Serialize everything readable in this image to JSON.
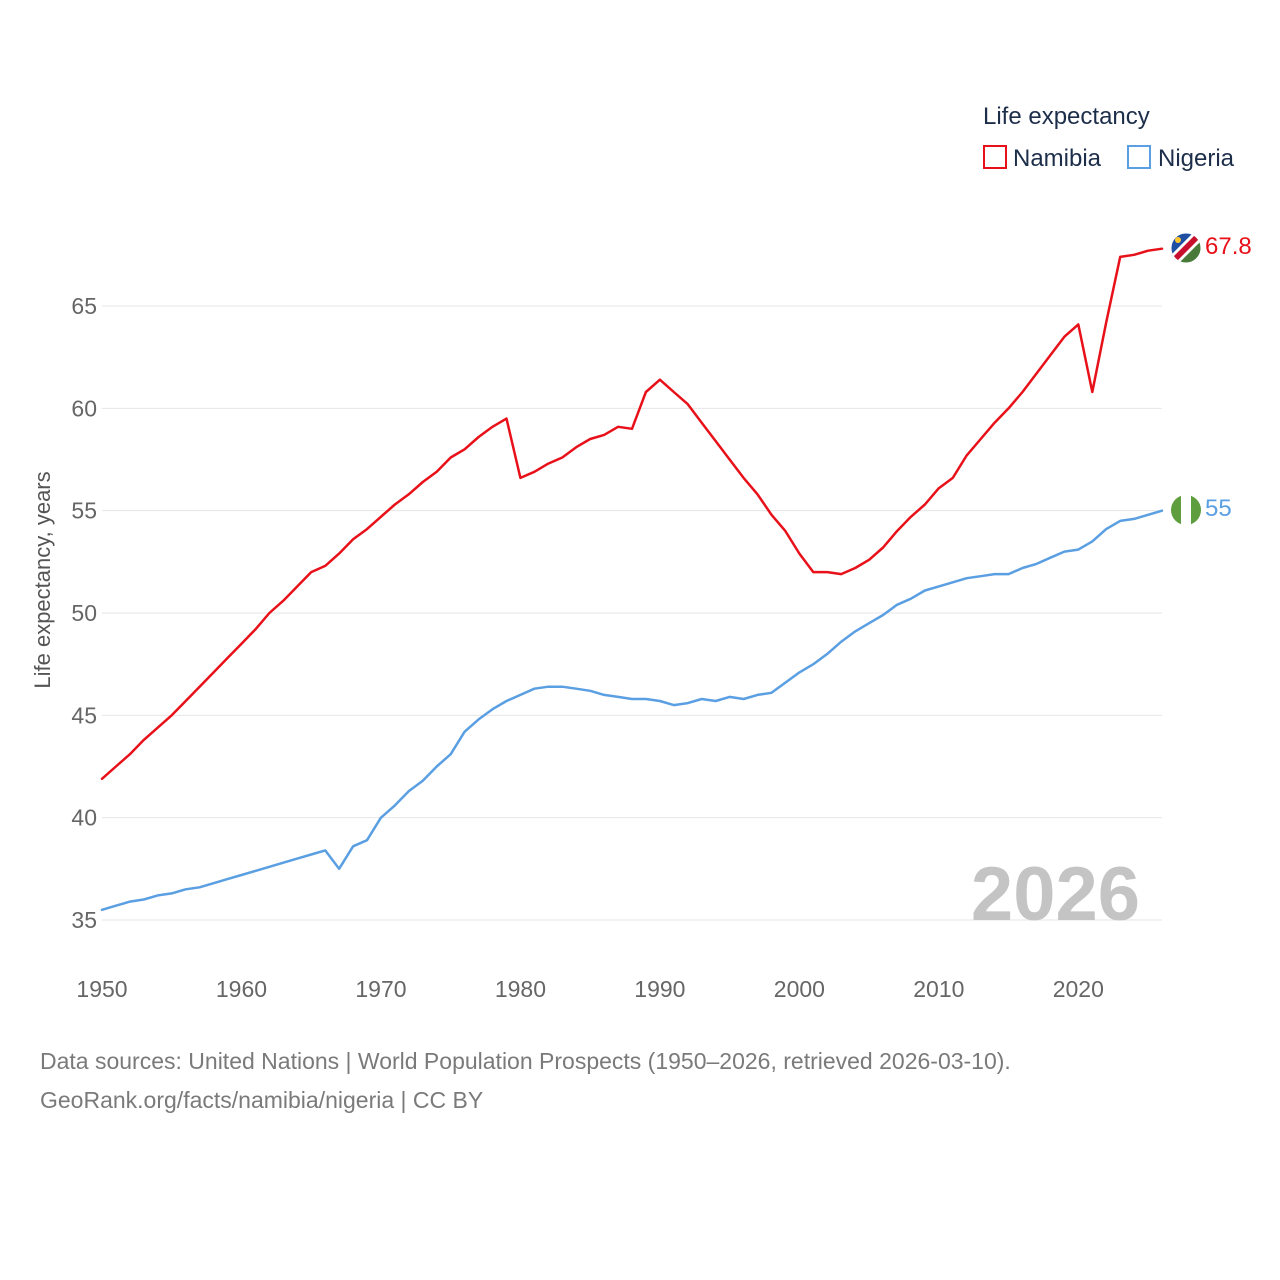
{
  "chart_data": {
    "type": "line",
    "ylabel": "Life expectancy, years",
    "xlabel": "",
    "x_ticks": [
      "1950",
      "1960",
      "1970",
      "1980",
      "1990",
      "2000",
      "2010",
      "2020"
    ],
    "y_ticks": [
      "35",
      "40",
      "45",
      "50",
      "55",
      "60",
      "65"
    ],
    "xlim": [
      1950,
      2026
    ],
    "ylim": [
      33,
      69
    ],
    "year_label": "2026",
    "legend": {
      "title": "Life expectancy",
      "position": "top-right"
    },
    "x": [
      1950,
      1951,
      1952,
      1953,
      1954,
      1955,
      1956,
      1957,
      1958,
      1959,
      1960,
      1961,
      1962,
      1963,
      1964,
      1965,
      1966,
      1967,
      1968,
      1969,
      1970,
      1971,
      1972,
      1973,
      1974,
      1975,
      1976,
      1977,
      1978,
      1979,
      1980,
      1981,
      1982,
      1983,
      1984,
      1985,
      1986,
      1987,
      1988,
      1989,
      1990,
      1991,
      1992,
      1993,
      1994,
      1995,
      1996,
      1997,
      1998,
      1999,
      2000,
      2001,
      2002,
      2003,
      2004,
      2005,
      2006,
      2007,
      2008,
      2009,
      2010,
      2011,
      2012,
      2013,
      2014,
      2015,
      2016,
      2017,
      2018,
      2019,
      2020,
      2021,
      2022,
      2023,
      2024,
      2025,
      2026
    ],
    "series": [
      {
        "name": "Namibia",
        "color": "#e8111a",
        "end_label": "67.8",
        "flag": "namibia-flag-icon",
        "values": [
          41.9,
          42.5,
          43.1,
          43.8,
          44.4,
          45.0,
          45.7,
          46.4,
          47.1,
          47.8,
          48.5,
          49.2,
          50.0,
          50.6,
          51.3,
          52.0,
          52.3,
          52.9,
          53.6,
          54.1,
          54.7,
          55.3,
          55.8,
          56.4,
          56.9,
          57.6,
          58.0,
          58.6,
          59.1,
          59.5,
          56.6,
          56.9,
          57.3,
          57.6,
          58.1,
          58.5,
          58.7,
          59.1,
          59.0,
          60.8,
          61.4,
          60.8,
          60.2,
          59.3,
          58.4,
          57.5,
          56.6,
          55.8,
          54.8,
          54.0,
          52.9,
          52.0,
          52.0,
          51.9,
          52.2,
          52.6,
          53.2,
          54.0,
          54.7,
          55.3,
          56.1,
          56.6,
          57.7,
          58.5,
          59.3,
          60.0,
          60.8,
          61.7,
          62.6,
          63.5,
          64.1,
          60.8,
          64.2,
          67.4,
          67.5,
          67.7,
          67.8
        ]
      },
      {
        "name": "Nigeria",
        "color": "#5b9fe3",
        "end_label": "55",
        "flag": "nigeria-flag-icon",
        "values": [
          35.5,
          35.7,
          35.9,
          36.0,
          36.2,
          36.3,
          36.5,
          36.6,
          36.8,
          37.0,
          37.2,
          37.4,
          37.6,
          37.8,
          38.0,
          38.2,
          38.4,
          37.5,
          38.6,
          38.9,
          40.0,
          40.6,
          41.3,
          41.8,
          42.5,
          43.1,
          44.2,
          44.8,
          45.3,
          45.7,
          46.0,
          46.3,
          46.4,
          46.4,
          46.3,
          46.2,
          46.0,
          45.9,
          45.8,
          45.8,
          45.7,
          45.5,
          45.6,
          45.8,
          45.7,
          45.9,
          45.8,
          46.0,
          46.1,
          46.6,
          47.1,
          47.5,
          48.0,
          48.6,
          49.1,
          49.5,
          49.9,
          50.4,
          50.7,
          51.1,
          51.3,
          51.5,
          51.7,
          51.8,
          51.9,
          51.9,
          52.2,
          52.4,
          52.7,
          53.0,
          53.1,
          53.5,
          54.1,
          54.5,
          54.6,
          54.8,
          55.0
        ]
      }
    ]
  },
  "footer": {
    "line1": "Data sources: United Nations | World Population Prospects (1950–2026, retrieved 2026-03-10).",
    "line2": "GeoRank.org/facts/namibia/nigeria | CC BY"
  }
}
